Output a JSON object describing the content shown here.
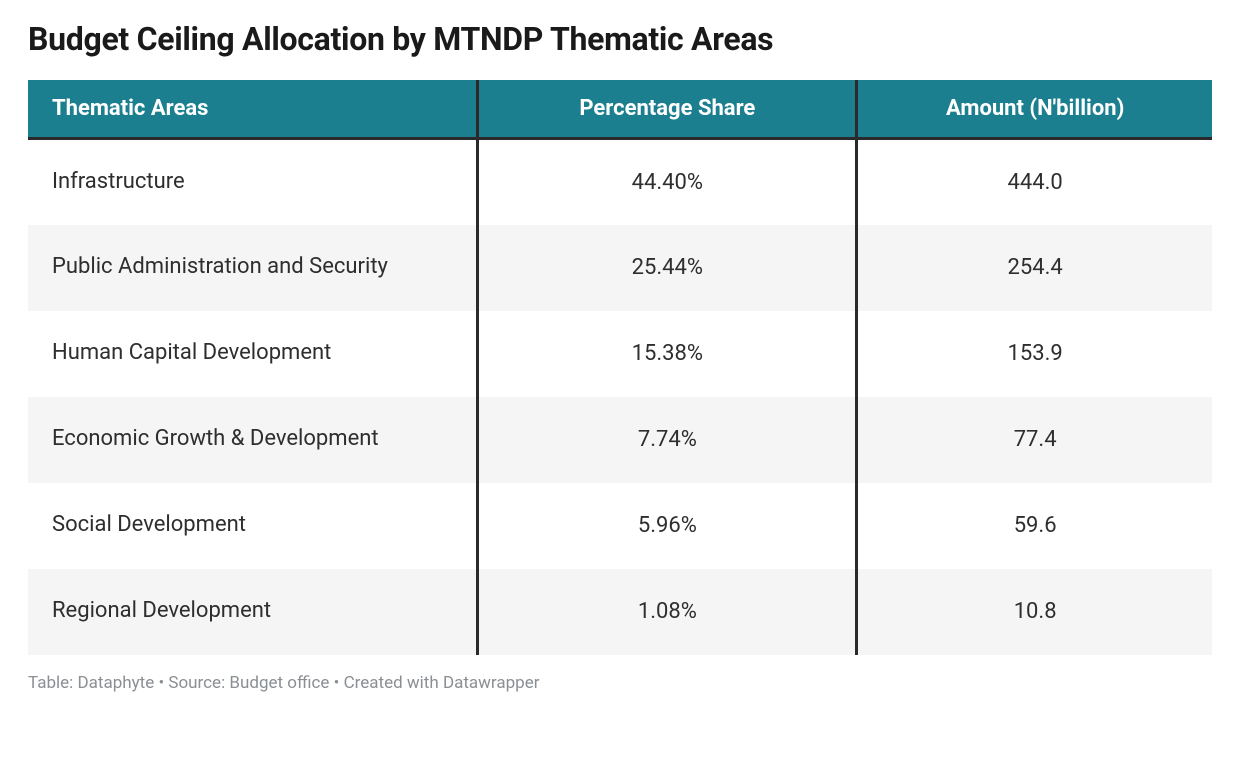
{
  "title": "Budget Ceiling Allocation by MTNDP Thematic Areas",
  "colors": {
    "header_bg": "#1b7f8f",
    "row_alt": "#f5f5f5",
    "text": "#2e2e2e",
    "footer": "#8a8f94",
    "sep": "#2a2a2a"
  },
  "typography": {
    "title_fontsize": 32,
    "header_fontsize": 22,
    "cell_fontsize": 22,
    "footer_fontsize": 17
  },
  "table": {
    "columns": [
      {
        "label": "Thematic Areas",
        "align": "left",
        "width_pct": 38
      },
      {
        "label": "Percentage Share",
        "align": "center",
        "width_pct": 32
      },
      {
        "label": "Amount (N'billion)",
        "align": "center",
        "width_pct": 30
      }
    ],
    "rows": [
      {
        "area": "Infrastructure",
        "share": "44.40%",
        "amount": "444.0"
      },
      {
        "area": "Public Administration and Security",
        "share": "25.44%",
        "amount": "254.4"
      },
      {
        "area": "Human Capital Development",
        "share": "15.38%",
        "amount": "153.9"
      },
      {
        "area": "Economic Growth & Development",
        "share": "7.74%",
        "amount": "77.4"
      },
      {
        "area": "Social Development",
        "share": "5.96%",
        "amount": "59.6"
      },
      {
        "area": "Regional Development",
        "share": "1.08%",
        "amount": "10.8"
      }
    ]
  },
  "footer": "Table: Dataphyte • Source: Budget office • Created with Datawrapper"
}
